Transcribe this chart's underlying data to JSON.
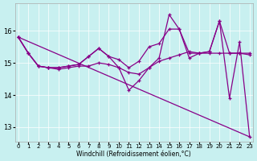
{
  "xlabel": "Windchill (Refroidissement éolien,°C)",
  "background_color": "#c8f0f0",
  "line_color": "#880088",
  "xlim": [
    -0.3,
    23.3
  ],
  "ylim": [
    12.55,
    16.85
  ],
  "yticks": [
    13,
    14,
    15,
    16
  ],
  "xticks": [
    0,
    1,
    2,
    3,
    4,
    5,
    6,
    7,
    8,
    9,
    10,
    11,
    12,
    13,
    14,
    15,
    16,
    17,
    18,
    19,
    20,
    21,
    22,
    23
  ],
  "lines": [
    {
      "x": [
        0,
        23
      ],
      "y": [
        15.8,
        12.7
      ],
      "marker": false,
      "lw": 0.9
    },
    {
      "x": [
        0,
        1,
        2,
        3,
        4,
        5,
        6,
        7,
        8,
        9,
        10,
        11,
        12,
        13,
        14,
        15,
        16,
        17,
        18,
        19,
        20,
        21,
        22,
        23
      ],
      "y": [
        15.8,
        15.3,
        14.9,
        14.85,
        14.85,
        14.9,
        14.95,
        15.2,
        15.45,
        15.2,
        15.1,
        14.85,
        15.05,
        15.5,
        15.6,
        16.05,
        16.05,
        15.3,
        15.3,
        15.35,
        16.3,
        15.3,
        15.3,
        15.3
      ],
      "marker": true,
      "lw": 0.9
    },
    {
      "x": [
        0,
        1,
        2,
        3,
        4,
        5,
        6,
        7,
        8,
        9,
        10,
        11,
        12,
        13,
        14,
        15,
        16,
        17,
        18,
        19,
        20,
        21,
        22,
        23
      ],
      "y": [
        15.8,
        15.3,
        14.9,
        14.85,
        14.85,
        14.9,
        14.95,
        15.2,
        15.45,
        15.2,
        14.85,
        14.15,
        14.45,
        14.85,
        15.15,
        16.5,
        16.05,
        15.15,
        15.3,
        15.35,
        16.3,
        13.9,
        15.65,
        12.7
      ],
      "marker": true,
      "lw": 0.9
    },
    {
      "x": [
        0,
        1,
        2,
        3,
        4,
        5,
        6,
        7,
        8,
        9,
        10,
        11,
        12,
        13,
        14,
        15,
        16,
        17,
        18,
        19,
        20,
        21,
        22,
        23
      ],
      "y": [
        15.8,
        15.3,
        14.9,
        14.85,
        14.8,
        14.85,
        14.9,
        14.9,
        15.0,
        14.95,
        14.85,
        14.7,
        14.65,
        14.85,
        15.05,
        15.15,
        15.25,
        15.35,
        15.3,
        15.3,
        15.3,
        15.3,
        15.3,
        15.25
      ],
      "marker": true,
      "lw": 0.9
    }
  ]
}
